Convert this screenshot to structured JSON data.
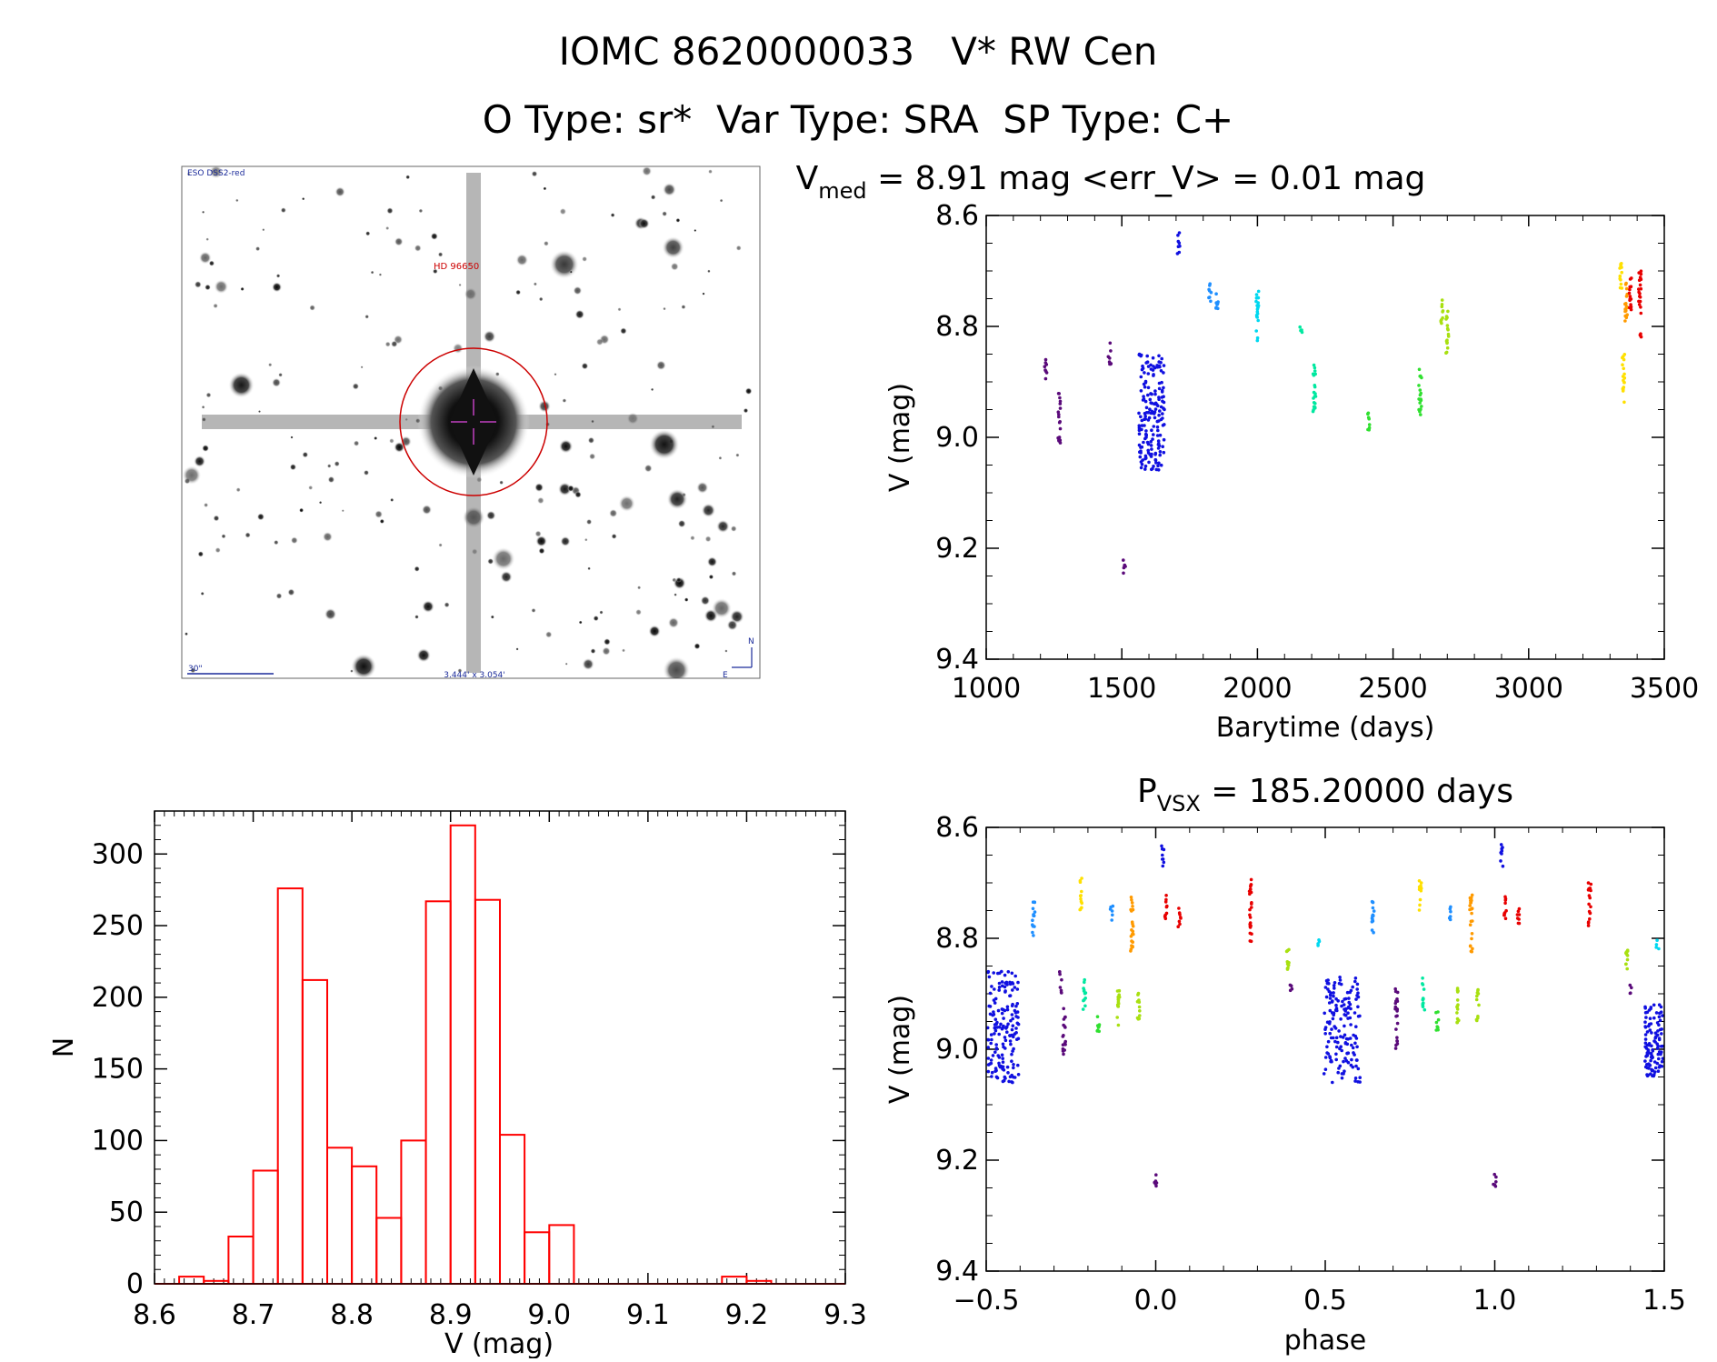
{
  "header": {
    "line1": "IOMC 8620000033   V* RW Cen",
    "line2": "O Type: sr*  Var Type: SRA  SP Type: C+"
  },
  "sky_image": {
    "survey_label": "ESO DSS2-red",
    "target_label": "HD 96650",
    "scale_label": "30\"",
    "fov_label": "3.444' x 3.054'",
    "north_label": "N",
    "east_label": "E"
  },
  "colors": {
    "histogram": "#ff0000",
    "axes": "#000000",
    "rainbow": [
      "#5a0a7a",
      "#1010e0",
      "#1f8fff",
      "#00d8f0",
      "#00e8a0",
      "#30e030",
      "#a8e010",
      "#ffe000",
      "#ff9a00",
      "#e80000"
    ]
  },
  "chart_data": [
    {
      "type": "scatter",
      "title_main": "V",
      "title_sub": "med",
      "title_rest": " = 8.91 mag <err_V> = 0.01 mag",
      "xlabel": "Barytime (days)",
      "ylabel": "V (mag)",
      "xlim": [
        1000,
        3500
      ],
      "ylim": [
        9.4,
        8.6
      ],
      "xticks": [
        "1000",
        "1500",
        "2000",
        "2500",
        "3000",
        "3500"
      ],
      "yticks": [
        "8.6",
        "8.8",
        "9.0",
        "9.2",
        "9.4"
      ],
      "segments": [
        {
          "x": 1220,
          "ymin": 8.86,
          "ymax": 8.9,
          "color_index": 0
        },
        {
          "x": 1270,
          "ymin": 8.92,
          "ymax": 9.01,
          "color_index": 0
        },
        {
          "x": 1455,
          "ymin": 8.83,
          "ymax": 8.87,
          "color_index": 0
        },
        {
          "x": 1510,
          "ymin": 9.22,
          "ymax": 9.25,
          "color_index": 0
        },
        {
          "x": 1610,
          "ymin": 8.85,
          "ymax": 9.06,
          "color_index": 1,
          "width": 28
        },
        {
          "x": 1710,
          "ymin": 8.63,
          "ymax": 8.67,
          "color_index": 1
        },
        {
          "x": 1825,
          "ymin": 8.72,
          "ymax": 8.76,
          "color_index": 2
        },
        {
          "x": 1850,
          "ymin": 8.73,
          "ymax": 8.77,
          "color_index": 2
        },
        {
          "x": 2000,
          "ymin": 8.73,
          "ymax": 8.83,
          "color_index": 3
        },
        {
          "x": 2160,
          "ymin": 8.8,
          "ymax": 8.82,
          "color_index": 4
        },
        {
          "x": 2210,
          "ymin": 8.86,
          "ymax": 8.96,
          "color_index": 4
        },
        {
          "x": 2410,
          "ymin": 8.95,
          "ymax": 8.99,
          "color_index": 5
        },
        {
          "x": 2600,
          "ymin": 8.87,
          "ymax": 8.96,
          "color_index": 5
        },
        {
          "x": 2680,
          "ymin": 8.75,
          "ymax": 8.8,
          "color_index": 6
        },
        {
          "x": 2700,
          "ymin": 8.77,
          "ymax": 8.85,
          "color_index": 6
        },
        {
          "x": 3340,
          "ymin": 8.68,
          "ymax": 8.74,
          "color_index": 7
        },
        {
          "x": 3350,
          "ymin": 8.85,
          "ymax": 8.94,
          "color_index": 7
        },
        {
          "x": 3360,
          "ymin": 8.72,
          "ymax": 8.8,
          "color_index": 8
        },
        {
          "x": 3375,
          "ymin": 8.71,
          "ymax": 8.78,
          "color_index": 9
        },
        {
          "x": 3410,
          "ymin": 8.69,
          "ymax": 8.78,
          "color_index": 9
        },
        {
          "x": 3410,
          "ymin": 8.8,
          "ymax": 8.82,
          "color_index": 9
        }
      ]
    },
    {
      "type": "bar",
      "xlabel": "V (mag)",
      "ylabel": "N",
      "xlim": [
        8.6,
        9.3
      ],
      "ylim": [
        0,
        330
      ],
      "xticks": [
        "8.6",
        "8.7",
        "8.8",
        "8.9",
        "9.0",
        "9.1",
        "9.2",
        "9.3"
      ],
      "yticks": [
        "0",
        "50",
        "100",
        "150",
        "200",
        "250",
        "300"
      ],
      "bin_width": 0.025,
      "bins": [
        {
          "left": 8.625,
          "value": 5
        },
        {
          "left": 8.65,
          "value": 2
        },
        {
          "left": 8.675,
          "value": 33
        },
        {
          "left": 8.7,
          "value": 79
        },
        {
          "left": 8.725,
          "value": 276
        },
        {
          "left": 8.75,
          "value": 212
        },
        {
          "left": 8.775,
          "value": 95
        },
        {
          "left": 8.8,
          "value": 82
        },
        {
          "left": 8.825,
          "value": 46
        },
        {
          "left": 8.85,
          "value": 100
        },
        {
          "left": 8.875,
          "value": 267
        },
        {
          "left": 8.9,
          "value": 320
        },
        {
          "left": 8.925,
          "value": 268
        },
        {
          "left": 8.95,
          "value": 104
        },
        {
          "left": 8.975,
          "value": 36
        },
        {
          "left": 9.0,
          "value": 41
        },
        {
          "left": 9.025,
          "value": 0
        },
        {
          "left": 9.05,
          "value": 0
        },
        {
          "left": 9.075,
          "value": 0
        },
        {
          "left": 9.1,
          "value": 0
        },
        {
          "left": 9.125,
          "value": 0
        },
        {
          "left": 9.15,
          "value": 0
        },
        {
          "left": 9.175,
          "value": 5
        },
        {
          "left": 9.2,
          "value": 2
        }
      ]
    },
    {
      "type": "scatter",
      "title_main": "P",
      "title_sub": "VSX",
      "title_rest": " = 185.20000 days",
      "xlabel": "phase",
      "ylabel": "V (mag)",
      "xlim": [
        -0.5,
        1.5
      ],
      "ylim": [
        9.4,
        8.6
      ],
      "xticks": [
        "−0.5",
        "0.0",
        "0.5",
        "1.0",
        "1.5"
      ],
      "yticks": [
        "8.6",
        "8.8",
        "9.0",
        "9.2",
        "9.4"
      ],
      "segments": [
        {
          "x": -0.45,
          "ymin": 8.86,
          "ymax": 9.06,
          "color_index": 1,
          "width": 34
        },
        {
          "x": -0.36,
          "ymin": 8.73,
          "ymax": 8.8,
          "color_index": 2
        },
        {
          "x": -0.28,
          "ymin": 8.86,
          "ymax": 8.9,
          "color_index": 0
        },
        {
          "x": -0.27,
          "ymin": 8.92,
          "ymax": 9.01,
          "color_index": 0
        },
        {
          "x": -0.22,
          "ymin": 8.69,
          "ymax": 8.75,
          "color_index": 7
        },
        {
          "x": -0.21,
          "ymin": 8.87,
          "ymax": 8.93,
          "color_index": 4
        },
        {
          "x": -0.17,
          "ymin": 8.93,
          "ymax": 8.97,
          "color_index": 5
        },
        {
          "x": -0.13,
          "ymin": 8.74,
          "ymax": 8.77,
          "color_index": 2
        },
        {
          "x": -0.11,
          "ymin": 8.88,
          "ymax": 8.96,
          "color_index": 6
        },
        {
          "x": -0.07,
          "ymin": 8.72,
          "ymax": 8.83,
          "color_index": 8
        },
        {
          "x": -0.05,
          "ymin": 8.89,
          "ymax": 8.95,
          "color_index": 6
        },
        {
          "x": 0.0,
          "ymin": 9.22,
          "ymax": 9.25,
          "color_index": 0
        },
        {
          "x": 0.02,
          "ymin": 8.63,
          "ymax": 8.67,
          "color_index": 1
        },
        {
          "x": 0.03,
          "ymin": 8.72,
          "ymax": 8.77,
          "color_index": 9
        },
        {
          "x": 0.07,
          "ymin": 8.74,
          "ymax": 8.78,
          "color_index": 9
        },
        {
          "x": 0.28,
          "ymin": 8.69,
          "ymax": 8.81,
          "color_index": 9
        },
        {
          "x": 0.39,
          "ymin": 8.82,
          "ymax": 8.87,
          "color_index": 6
        },
        {
          "x": 0.4,
          "ymin": 8.88,
          "ymax": 8.9,
          "color_index": 0
        },
        {
          "x": 0.48,
          "ymin": 8.8,
          "ymax": 8.82,
          "color_index": 3
        },
        {
          "x": 0.55,
          "ymin": 8.87,
          "ymax": 9.06,
          "color_index": 1,
          "width": 40
        },
        {
          "x": 0.64,
          "ymin": 8.73,
          "ymax": 8.8,
          "color_index": 2
        },
        {
          "x": 0.71,
          "ymin": 8.89,
          "ymax": 9.0,
          "color_index": 0
        },
        {
          "x": 0.78,
          "ymin": 8.69,
          "ymax": 8.75,
          "color_index": 7
        },
        {
          "x": 0.79,
          "ymin": 8.87,
          "ymax": 8.93,
          "color_index": 4
        },
        {
          "x": 0.83,
          "ymin": 8.93,
          "ymax": 8.97,
          "color_index": 5
        },
        {
          "x": 0.87,
          "ymin": 8.74,
          "ymax": 8.77,
          "color_index": 2
        },
        {
          "x": 0.89,
          "ymin": 8.88,
          "ymax": 8.96,
          "color_index": 6
        },
        {
          "x": 0.93,
          "ymin": 8.72,
          "ymax": 8.83,
          "color_index": 8
        },
        {
          "x": 0.95,
          "ymin": 8.89,
          "ymax": 8.95,
          "color_index": 6
        },
        {
          "x": 1.0,
          "ymin": 9.22,
          "ymax": 9.25,
          "color_index": 0
        },
        {
          "x": 1.02,
          "ymin": 8.63,
          "ymax": 8.67,
          "color_index": 1
        },
        {
          "x": 1.03,
          "ymin": 8.72,
          "ymax": 8.77,
          "color_index": 9
        },
        {
          "x": 1.07,
          "ymin": 8.74,
          "ymax": 8.78,
          "color_index": 9
        },
        {
          "x": 1.28,
          "ymin": 8.69,
          "ymax": 8.78,
          "color_index": 9
        },
        {
          "x": 1.39,
          "ymin": 8.82,
          "ymax": 8.87,
          "color_index": 6
        },
        {
          "x": 1.4,
          "ymin": 8.88,
          "ymax": 8.9,
          "color_index": 0
        },
        {
          "x": 1.48,
          "ymin": 8.8,
          "ymax": 8.82,
          "color_index": 3
        },
        {
          "x": 1.47,
          "ymin": 8.92,
          "ymax": 9.05,
          "color_index": 1,
          "width": 20
        }
      ]
    }
  ]
}
